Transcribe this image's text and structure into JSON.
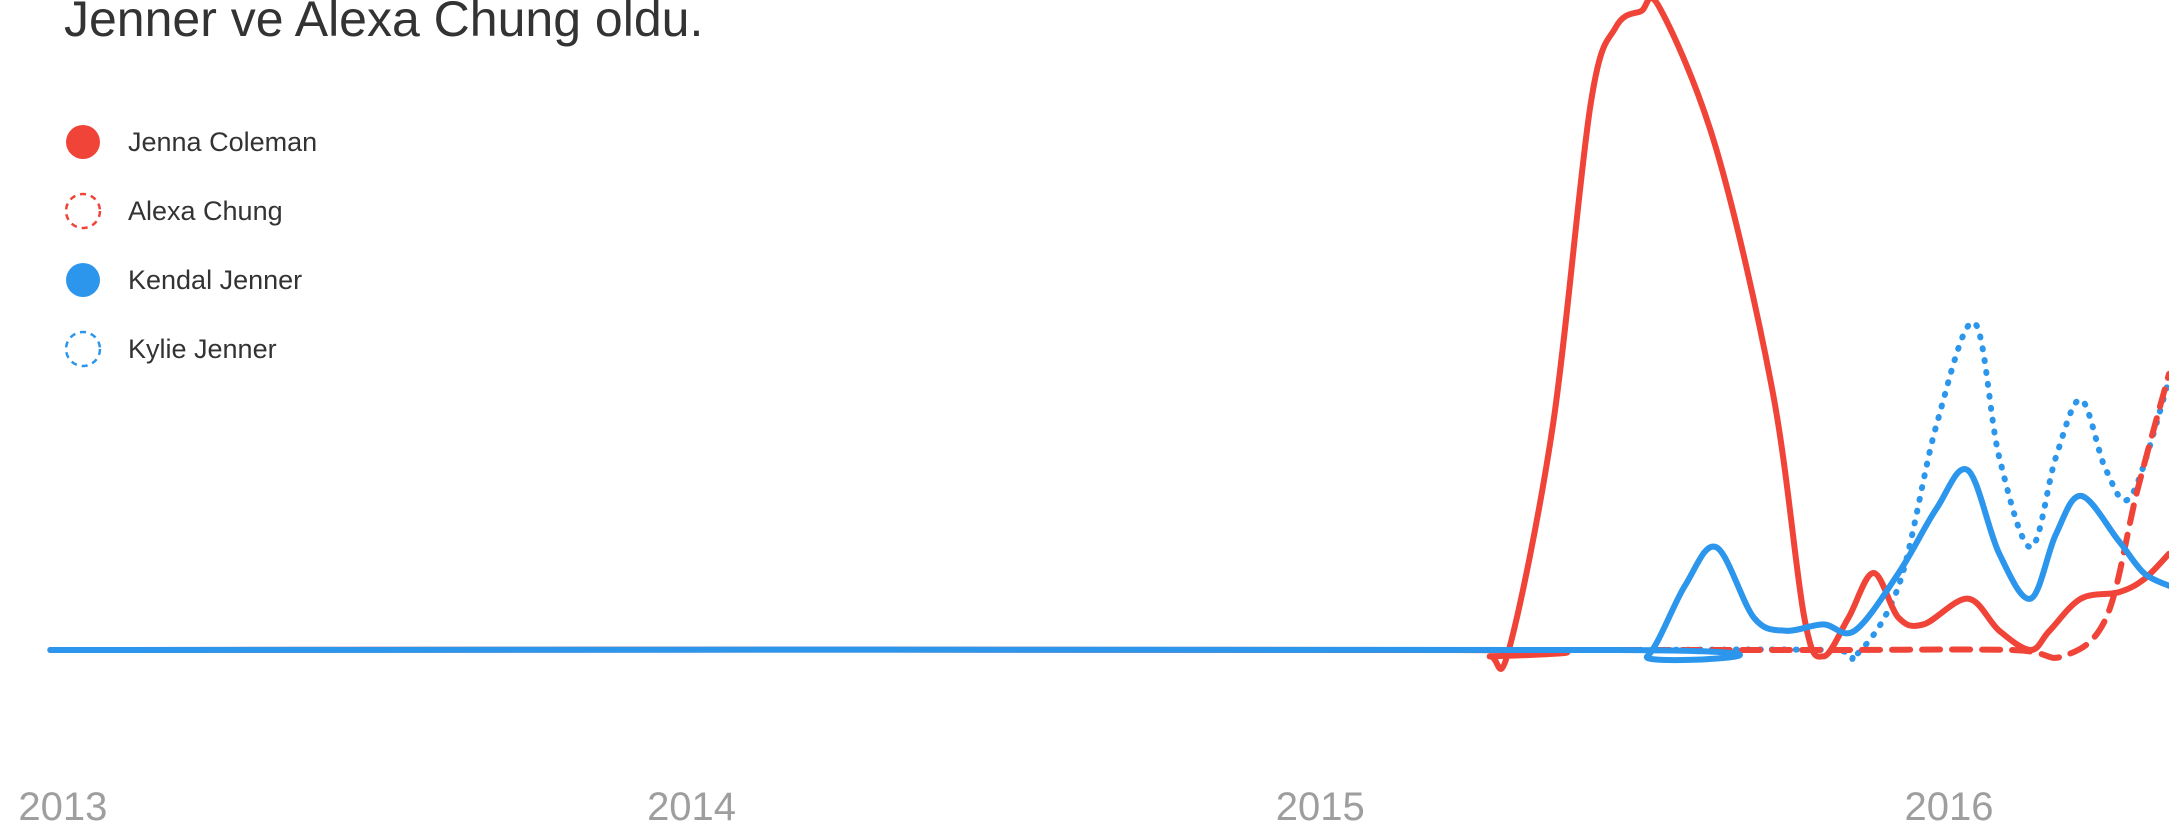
{
  "chart_data": {
    "type": "line",
    "title": "Jenner ve Alexa Chung oldu.",
    "xlim": [
      2012.9,
      2016.35
    ],
    "xticks": [
      2013,
      2014,
      2015,
      2016
    ],
    "ylim": [
      0,
      100
    ],
    "series": [
      {
        "name": "Jenna Coleman",
        "color": "#f04438",
        "style": "solid",
        "x": [
          2012.98,
          2015.21,
          2015.27,
          2015.3,
          2015.37,
          2015.43,
          2015.47,
          2015.51,
          2015.54,
          2015.63,
          2015.72,
          2015.77,
          2015.8,
          2015.84,
          2015.88,
          2015.92,
          2015.96,
          2016.03,
          2016.08,
          2016.13,
          2016.16,
          2016.21,
          2016.27,
          2016.31,
          2016.35
        ],
        "values": [
          0,
          0,
          -1,
          0,
          35,
          85,
          97,
          99.5,
          100,
          78,
          40,
          5,
          -1,
          5,
          12,
          5,
          4,
          8,
          3,
          0,
          3,
          8,
          9,
          11,
          15
        ]
      },
      {
        "name": "Alexa Chung",
        "color": "#f04438",
        "style": "dashed",
        "x": [
          2015.48,
          2015.8,
          2016.1,
          2016.18,
          2016.25,
          2016.3,
          2016.35
        ],
        "values": [
          0,
          0,
          0,
          -1,
          5,
          25,
          43
        ]
      },
      {
        "name": "Kendal Jenner",
        "color": "#2b96ec",
        "style": "solid",
        "x": [
          2012.98,
          2015.47,
          2015.52,
          2015.58,
          2015.63,
          2015.69,
          2015.74,
          2015.8,
          2015.85,
          2015.92,
          2015.98,
          2016.03,
          2016.08,
          2016.13,
          2016.17,
          2016.21,
          2016.27,
          2016.31,
          2016.35
        ],
        "values": [
          0,
          0,
          -1,
          10,
          16,
          5,
          3,
          4,
          3,
          12,
          22,
          28,
          15,
          8,
          18,
          24,
          17,
          12,
          10
        ]
      },
      {
        "name": "Kylie Jenner",
        "color": "#2b96ec",
        "style": "dotted",
        "x": [
          2015.47,
          2015.81,
          2015.85,
          2015.92,
          2015.98,
          2016.04,
          2016.08,
          2016.13,
          2016.17,
          2016.21,
          2016.25,
          2016.29,
          2016.35
        ],
        "values": [
          0,
          0,
          -1,
          10,
          35,
          51,
          30,
          16,
          30,
          39,
          28,
          24,
          42
        ]
      }
    ]
  }
}
